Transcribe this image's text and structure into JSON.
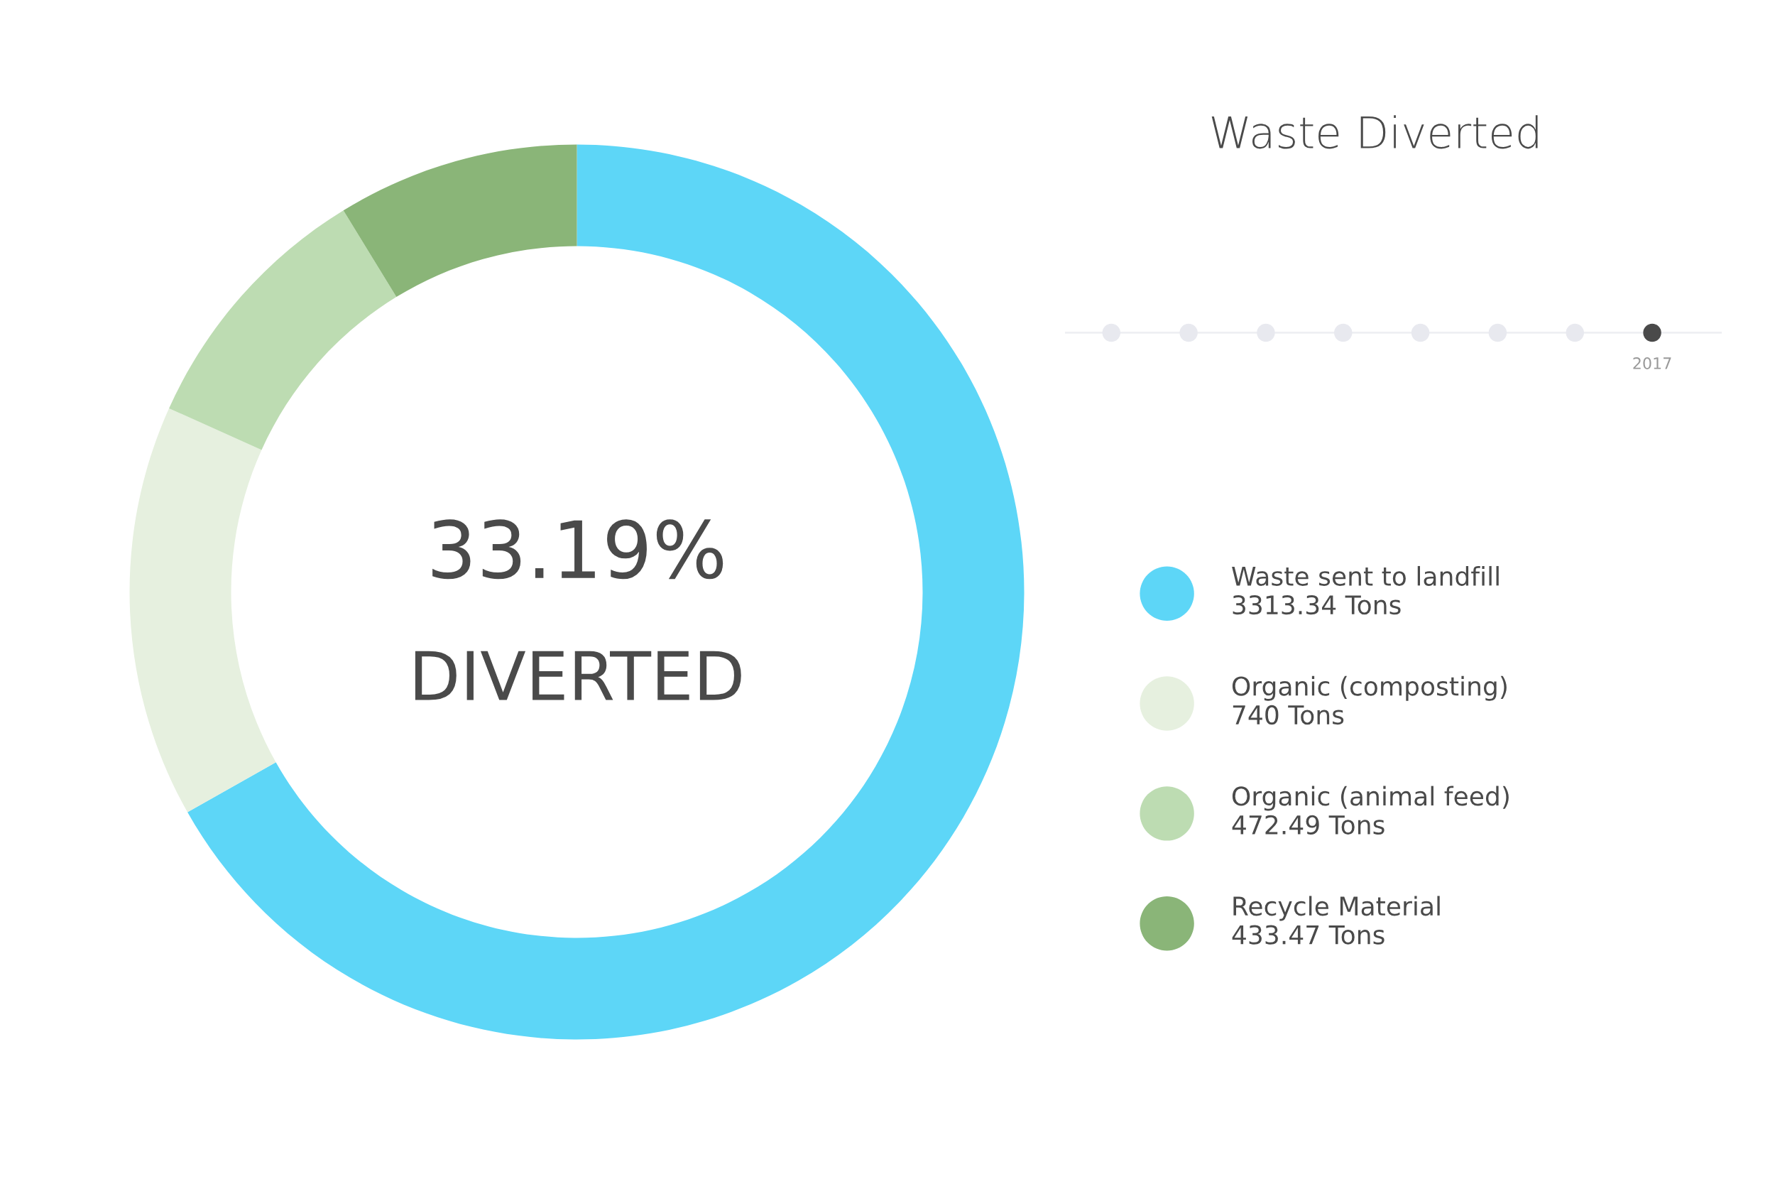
{
  "chart_data": {
    "type": "donut",
    "title": "Waste Diverted",
    "categories": [
      "Waste sent to landfill",
      "Organic (composting)",
      "Organic (animal feed)",
      "Recycle Material"
    ],
    "values": [
      3313.34,
      740,
      472.49,
      433.47
    ],
    "value_labels": [
      "3313.34 Tons",
      "740 Tons",
      "472.49 Tons",
      "433.47 Tons"
    ],
    "colors": [
      "#5dd6f7",
      "#e6f0df",
      "#bddcb2",
      "#8ab578"
    ],
    "annotations": [
      "33.19%",
      "DIVERTED",
      "2017"
    ],
    "legend": "right"
  }
}
